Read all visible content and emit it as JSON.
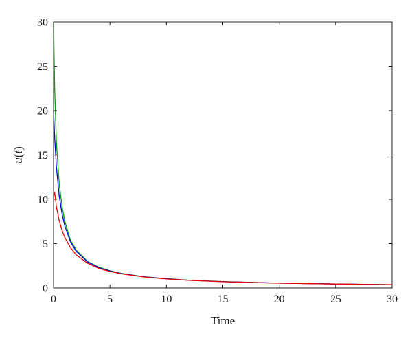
{
  "chart_data": {
    "type": "line",
    "title": "",
    "xlabel": "Time",
    "ylabel": "u(t)",
    "xlim": [
      0,
      30
    ],
    "ylim": [
      0,
      30
    ],
    "xticks": [
      0,
      5,
      10,
      15,
      20,
      25,
      30
    ],
    "yticks": [
      0,
      5,
      10,
      15,
      20,
      25,
      30
    ],
    "grid": false,
    "legend": "none",
    "series": [
      {
        "color": "#00a000",
        "x": [
          0,
          0.1,
          0.25,
          0.5,
          0.75,
          1,
          1.5,
          2,
          3,
          4,
          5,
          6,
          8,
          10,
          12,
          15,
          20,
          25,
          30
        ],
        "y": [
          30,
          22.5,
          16.5,
          11.8,
          9.2,
          7.5,
          5.4,
          4.3,
          3.0,
          2.35,
          1.95,
          1.65,
          1.27,
          1.05,
          0.88,
          0.72,
          0.55,
          0.45,
          0.38
        ]
      },
      {
        "color": "#0000dd",
        "x": [
          0,
          0.1,
          0.25,
          0.5,
          0.75,
          1,
          1.5,
          2,
          3,
          4,
          5,
          6,
          8,
          10,
          12,
          15,
          20,
          25,
          30
        ],
        "y": [
          20,
          17.0,
          13.7,
          10.4,
          8.4,
          7.0,
          5.2,
          4.15,
          2.95,
          2.3,
          1.92,
          1.63,
          1.26,
          1.04,
          0.87,
          0.71,
          0.55,
          0.45,
          0.38
        ]
      },
      {
        "color": "#ee0000",
        "x": [
          0,
          0.1,
          0.25,
          0.5,
          0.75,
          1,
          1.5,
          2,
          3,
          4,
          5,
          6,
          8,
          10,
          12,
          15,
          20,
          25,
          30
        ],
        "y": [
          10.3,
          10.8,
          9.2,
          7.6,
          6.5,
          5.7,
          4.55,
          3.75,
          2.8,
          2.22,
          1.86,
          1.6,
          1.24,
          1.02,
          0.86,
          0.71,
          0.54,
          0.45,
          0.38
        ]
      }
    ]
  }
}
